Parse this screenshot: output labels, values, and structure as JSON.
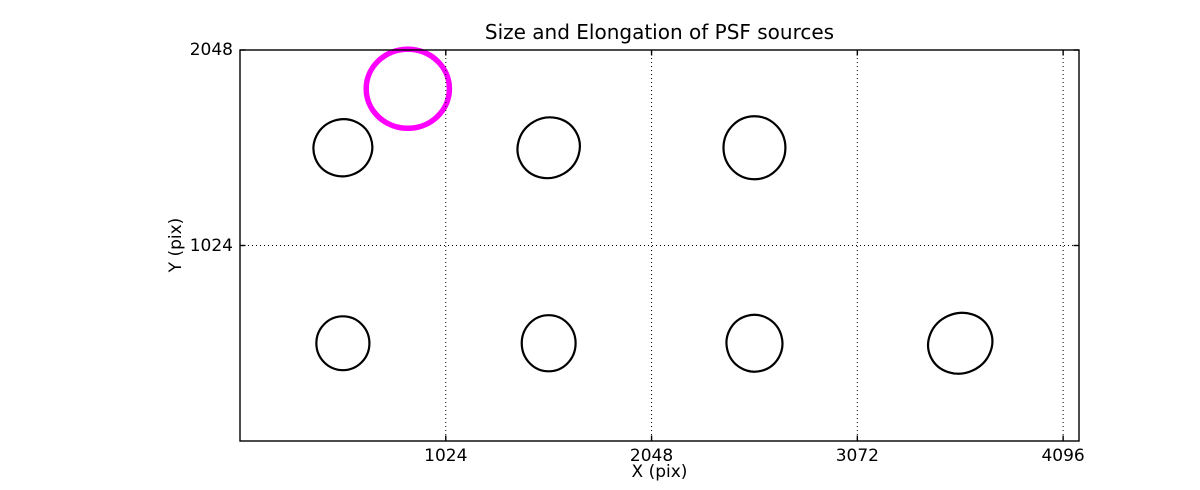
{
  "chart_data": {
    "type": "scatter",
    "title": "Size and Elongation of PSF sources",
    "xlabel": "X (pix)",
    "ylabel": "Y (pix)",
    "xlim": [
      0,
      4175
    ],
    "ylim": [
      0,
      2048
    ],
    "xticks": [
      1024,
      2048,
      3072,
      4096
    ],
    "yticks": [
      1024,
      2048
    ],
    "grid": "dotted",
    "legend": "none",
    "marker": "ellipse-outline",
    "sources": [
      {
        "x": 512,
        "y": 1536,
        "semi_axis_x": 147,
        "semi_axis_y": 149,
        "angle_deg": -20,
        "role": "psf-source"
      },
      {
        "x": 1536,
        "y": 1536,
        "semi_axis_x": 157,
        "semi_axis_y": 157,
        "angle_deg": -30,
        "role": "psf-source"
      },
      {
        "x": 2560,
        "y": 1536,
        "semi_axis_x": 154,
        "semi_axis_y": 165,
        "angle_deg": 0,
        "role": "psf-source"
      },
      {
        "x": 512,
        "y": 512,
        "semi_axis_x": 132,
        "semi_axis_y": 141,
        "angle_deg": 0,
        "role": "psf-source"
      },
      {
        "x": 1536,
        "y": 512,
        "semi_axis_x": 134,
        "semi_axis_y": 147,
        "angle_deg": 0,
        "role": "psf-source"
      },
      {
        "x": 2560,
        "y": 512,
        "semi_axis_x": 139,
        "semi_axis_y": 149,
        "angle_deg": -15,
        "role": "psf-source"
      },
      {
        "x": 3584,
        "y": 512,
        "semi_axis_x": 162,
        "semi_axis_y": 157,
        "angle_deg": -25,
        "role": "psf-source"
      },
      {
        "x": 835,
        "y": 1845,
        "semi_axis_x": 207,
        "semi_axis_y": 207,
        "angle_deg": 0,
        "role": "highlighted-source"
      }
    ],
    "styles": {
      "source_color": "#000000",
      "source_linewidth": 2.2,
      "highlight_color": "#FF00FF",
      "highlight_linewidth": 5.5,
      "axes_color": "#000000",
      "grid_color": "#000000",
      "background": "#FFFFFF"
    }
  }
}
